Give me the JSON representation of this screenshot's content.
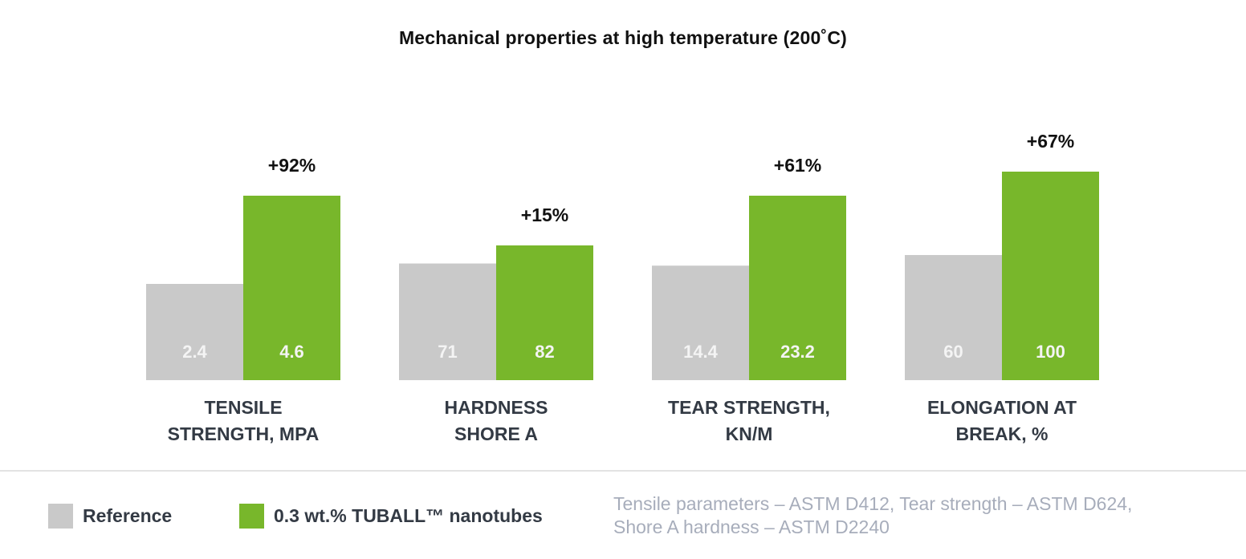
{
  "chart_data": {
    "type": "bar",
    "title": "Mechanical properties at high temperature (200˚C)",
    "categories": [
      [
        "TENSILE",
        "STRENGTH, MPA"
      ],
      [
        "HARDNESS",
        "SHORE A"
      ],
      [
        "TEAR STRENGTH,",
        "KN/M"
      ],
      [
        "ELONGATION AT",
        "BREAK, %"
      ]
    ],
    "series": [
      {
        "name": "Reference",
        "values": [
          2.4,
          71,
          14.4,
          60
        ],
        "labels": [
          "2.4",
          "71",
          "14.4",
          "60"
        ],
        "color": "#c9c9c9"
      },
      {
        "name": "0.3 wt.% TUBALL™ nanotubes",
        "values": [
          4.6,
          82,
          23.2,
          100
        ],
        "labels": [
          "4.6",
          "82",
          "23.2",
          "100"
        ],
        "color": "#78b72b"
      }
    ],
    "annotations": [
      "+92%",
      "+15%",
      "+61%",
      "+67%"
    ],
    "grid": false,
    "legend_position": "bottom-left"
  },
  "legend": {
    "reference_label": "Reference",
    "nanotubes_label": "0.3 wt.% TUBALL™ nanotubes",
    "reference_color": "#c9c9c9",
    "nanotubes_color": "#78b72b"
  },
  "footnote": {
    "line1": "Tensile parameters – ASTM D412, Tear strength – ASTM D624,",
    "line2": "Shore A hardness – ASTM D2240"
  },
  "colors": {
    "value_label": "#f4f4f4",
    "annotation_text": "#111111",
    "category_text": "#333a44"
  }
}
